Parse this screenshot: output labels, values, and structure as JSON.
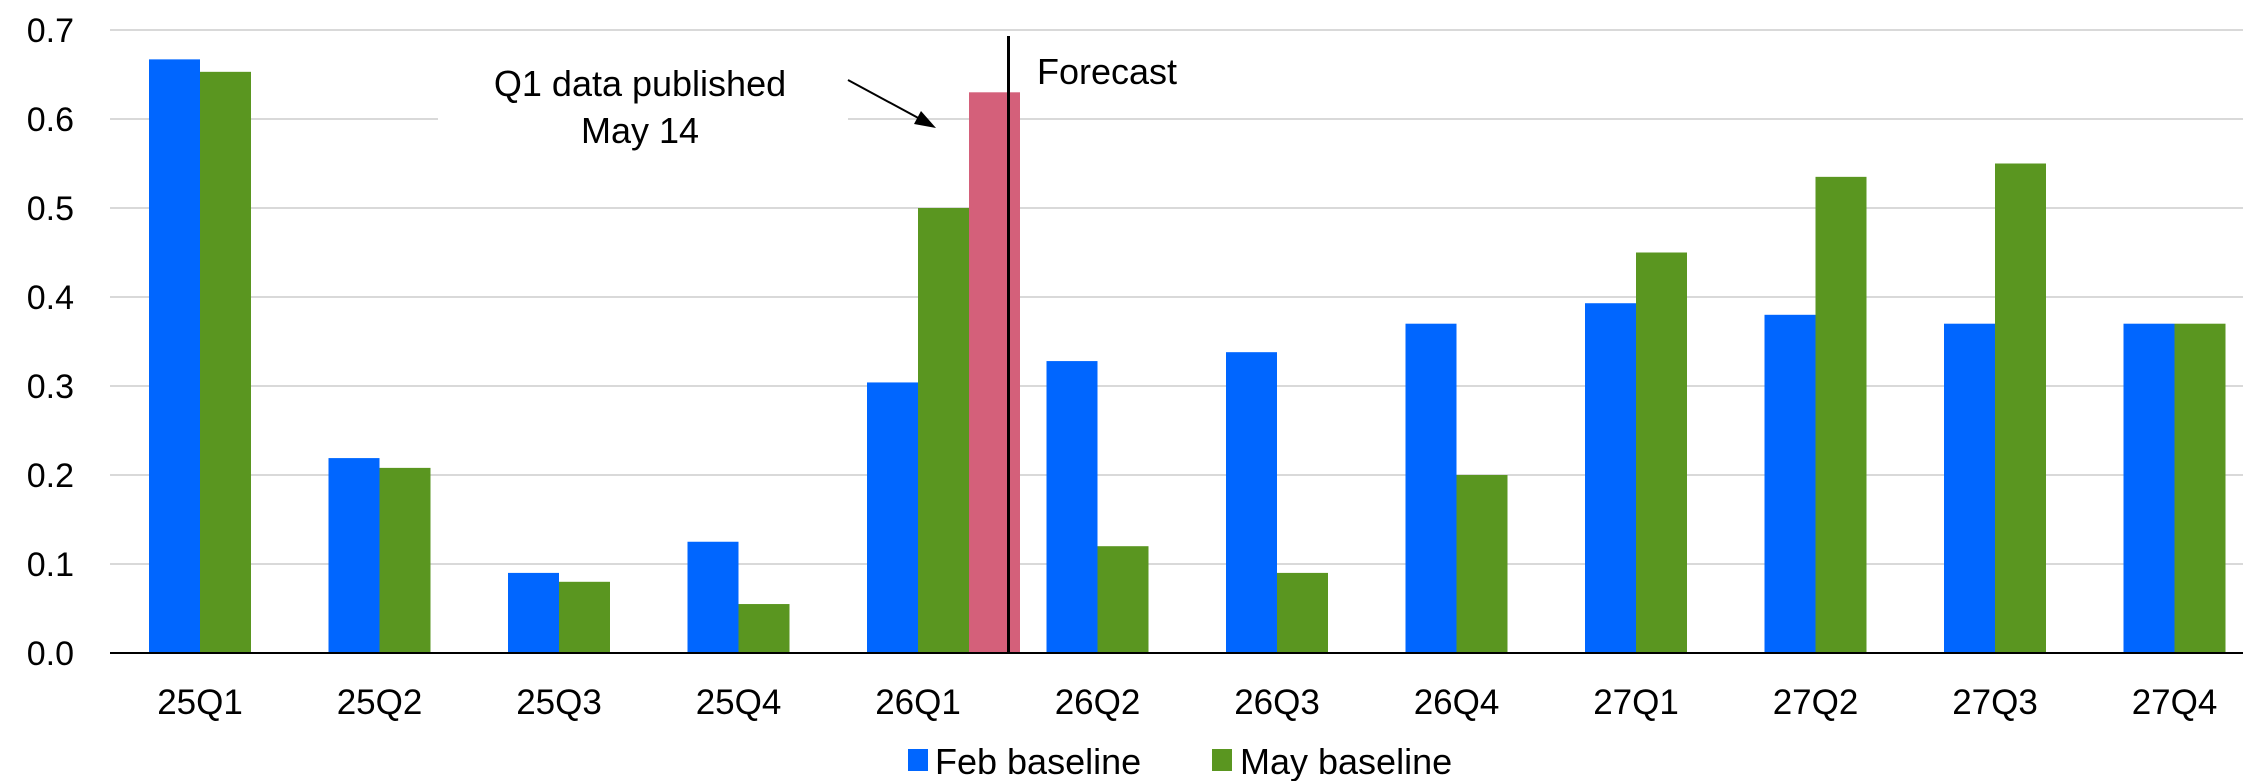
{
  "chart_data": {
    "type": "bar",
    "title": "",
    "xlabel": "",
    "ylabel": "",
    "ylim": [
      0,
      0.7
    ],
    "yticks": [
      0.0,
      0.1,
      0.2,
      0.3,
      0.4,
      0.5,
      0.6,
      0.7
    ],
    "ytick_labels": [
      "0.0",
      "0.1",
      "0.2",
      "0.3",
      "0.4",
      "0.5",
      "0.6",
      "0.7"
    ],
    "grid": true,
    "legend_position": "bottom",
    "categories": [
      "25Q1",
      "25Q2",
      "25Q3",
      "25Q4",
      "26Q1",
      "26Q2",
      "26Q3",
      "26Q4",
      "27Q1",
      "27Q2",
      "27Q3",
      "27Q4"
    ],
    "series": [
      {
        "name": "Feb baseline",
        "color": "#0066ff",
        "values": [
          0.667,
          0.219,
          0.09,
          0.125,
          0.304,
          0.328,
          0.338,
          0.37,
          0.393,
          0.38,
          0.37,
          0.37
        ]
      },
      {
        "name": "May baseline",
        "color": "#5a9620",
        "values": [
          0.653,
          0.208,
          0.08,
          0.055,
          0.5,
          0.12,
          0.09,
          0.2,
          0.45,
          0.535,
          0.55,
          0.37
        ]
      }
    ],
    "extra_bars": [
      {
        "category": "26Q1",
        "value": 0.63,
        "color": "#d4607a"
      }
    ],
    "forecast_divider_after": "26Q1",
    "annotations": {
      "forecast_label": "Forecast",
      "published_line1": "Q1 data published",
      "published_line2": "May 14"
    }
  }
}
